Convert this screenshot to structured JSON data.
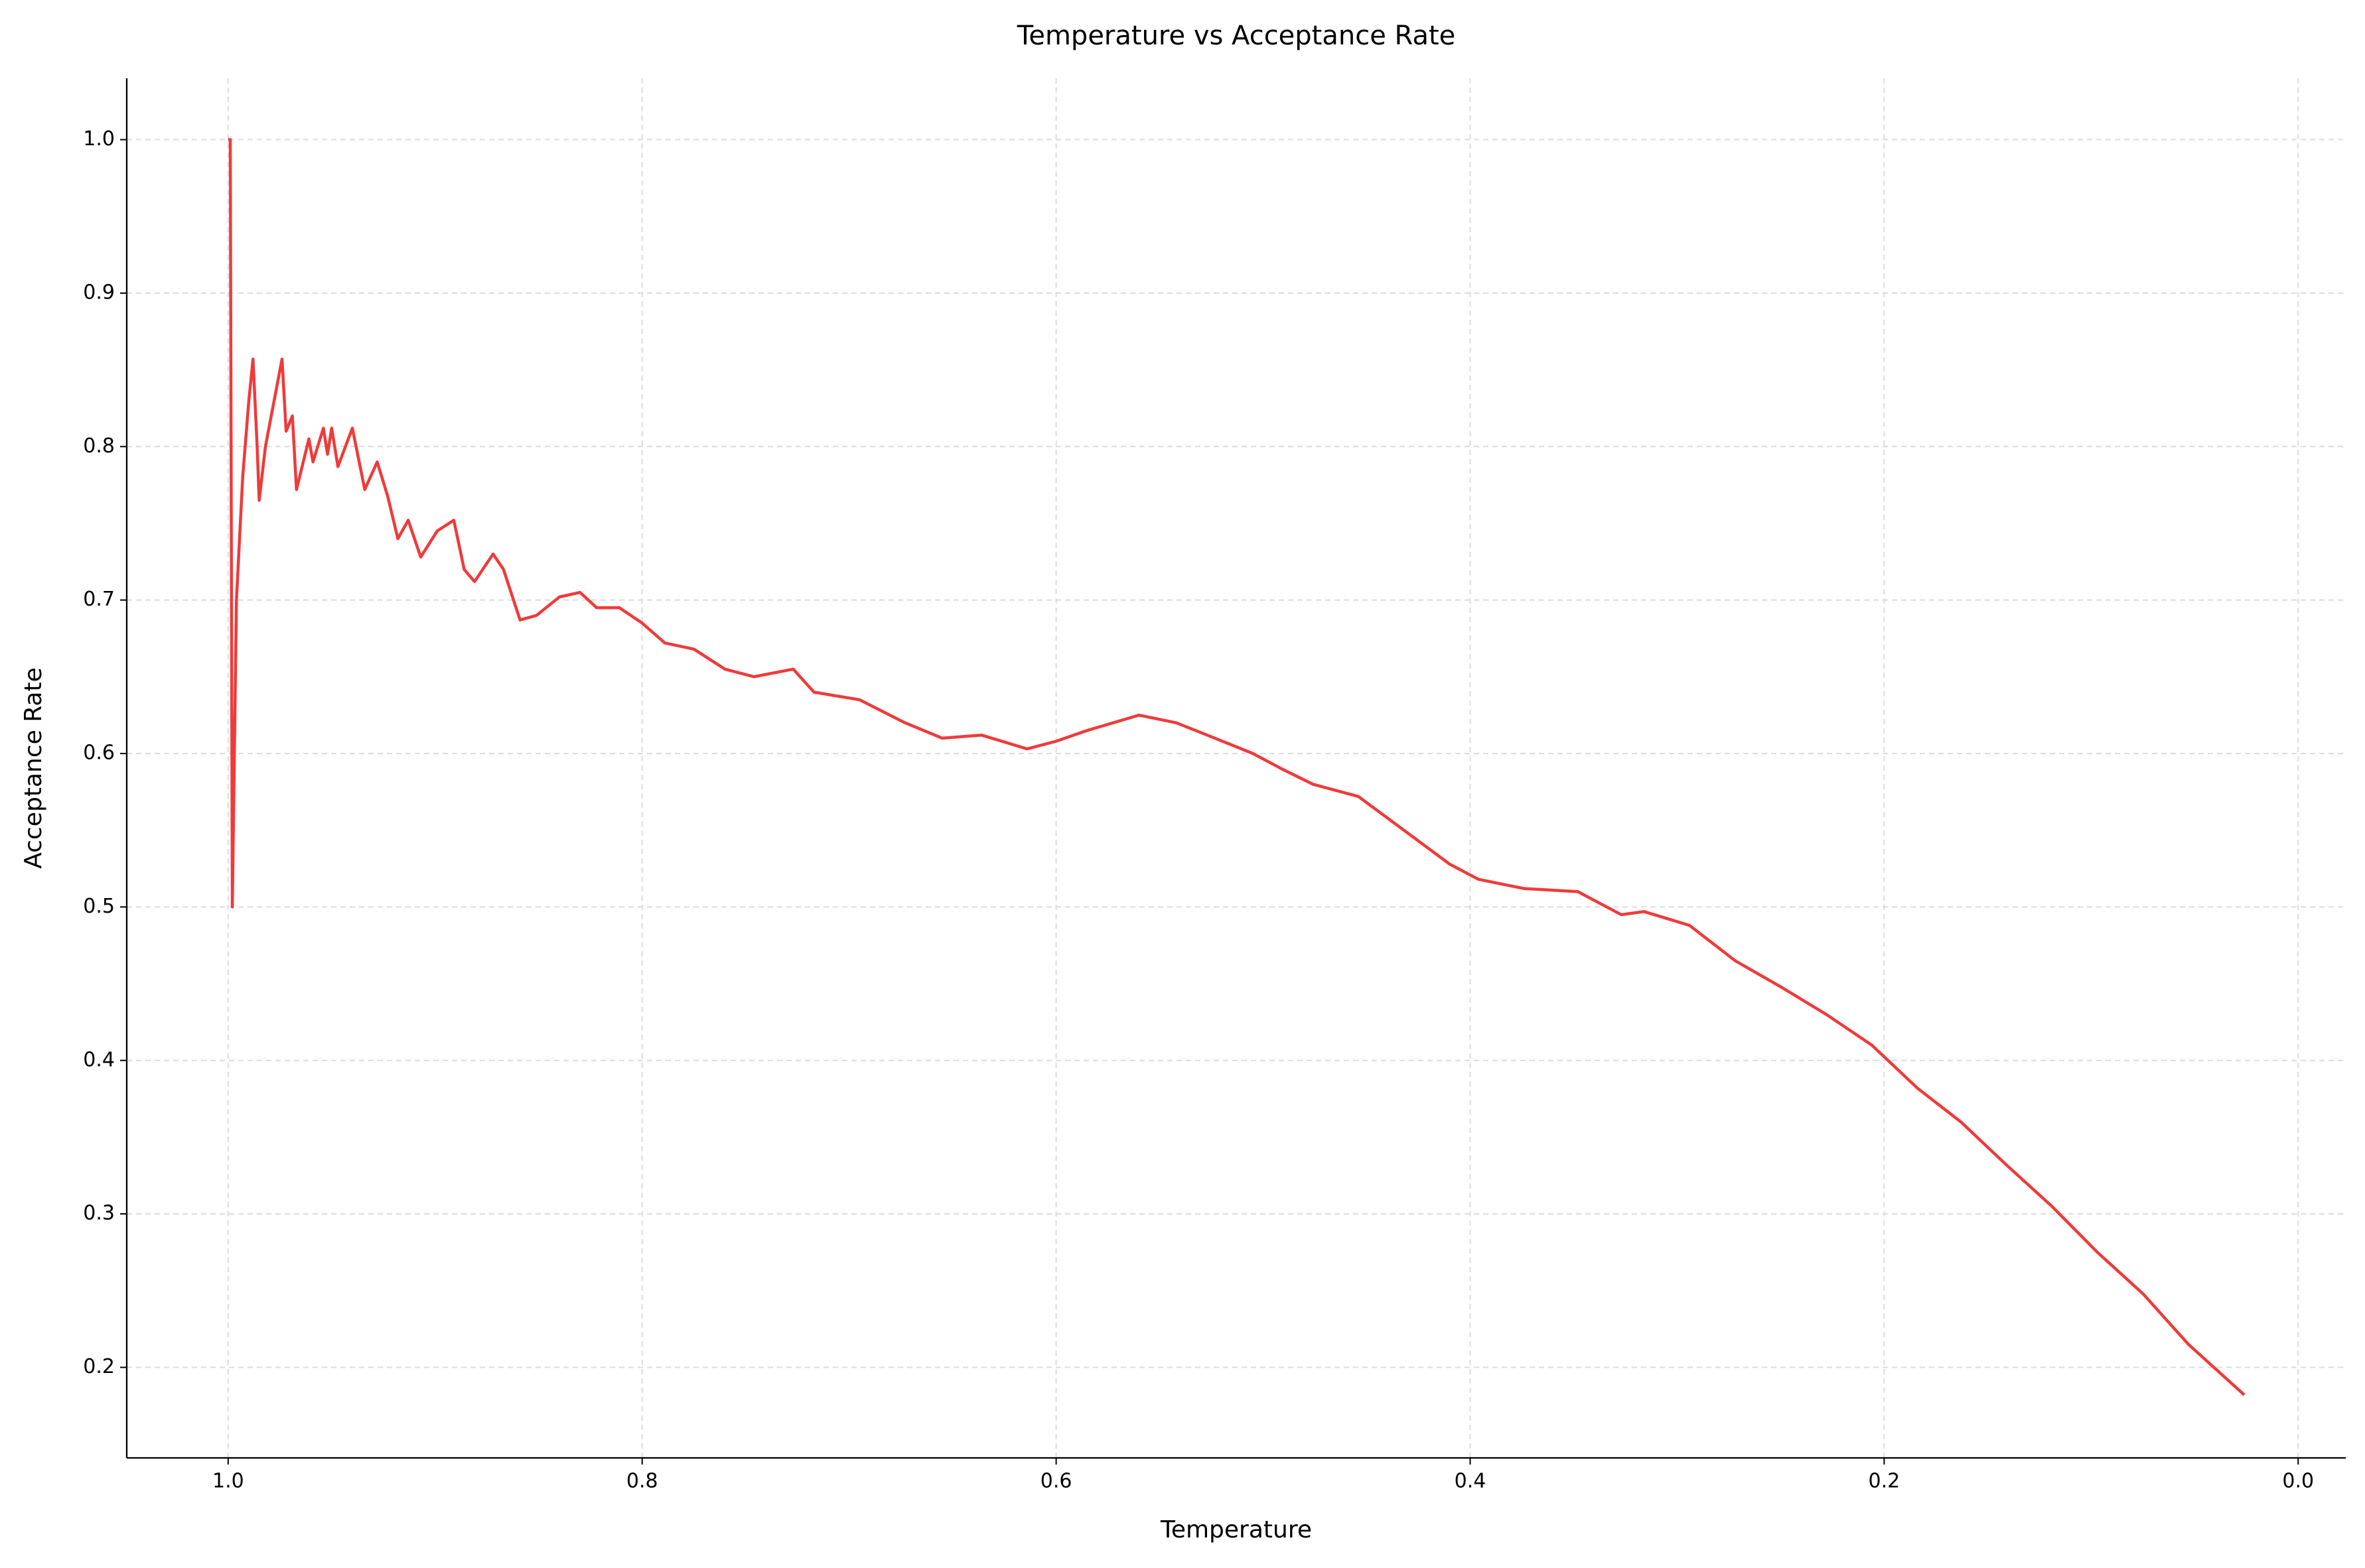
{
  "chart_data": {
    "type": "line",
    "title": "Temperature vs Acceptance Rate",
    "x_label": "Temperature",
    "y_label": "Acceptance Rate",
    "xlim": [
      1.049,
      -0.023
    ],
    "ylim": [
      0.141,
      1.04
    ],
    "xticks": [
      {
        "value": 1,
        "label": "1.0"
      },
      0.8,
      0.6,
      0.4,
      0.2,
      {
        "value": 0,
        "label": "0.0"
      }
    ],
    "yticks": [
      {
        "value": 1,
        "label": "1.0"
      },
      0.9,
      0.8,
      0.7,
      0.6,
      0.5,
      0.4,
      0.3,
      0.2
    ],
    "grid": true,
    "series": [
      {
        "color": "#f03a3a",
        "x": [
          1.0,
          0.999,
          0.998,
          0.996,
          0.993,
          0.99,
          0.988,
          0.986,
          0.985,
          0.982,
          0.974,
          0.972,
          0.969,
          0.967,
          0.961,
          0.959,
          0.954,
          0.952,
          0.95,
          0.947,
          0.94,
          0.934,
          0.928,
          0.923,
          0.918,
          0.913,
          0.907,
          0.899,
          0.891,
          0.886,
          0.881,
          0.872,
          0.867,
          0.859,
          0.851,
          0.84,
          0.83,
          0.822,
          0.811,
          0.8,
          0.789,
          0.775,
          0.76,
          0.746,
          0.727,
          0.717,
          0.695,
          0.673,
          0.655,
          0.636,
          0.614,
          0.6,
          0.585,
          0.56,
          0.542,
          0.527,
          0.505,
          0.491,
          0.476,
          0.454,
          0.432,
          0.41,
          0.396,
          0.374,
          0.348,
          0.327,
          0.316,
          0.294,
          0.272,
          0.25,
          0.228,
          0.206,
          0.184,
          0.163,
          0.141,
          0.119,
          0.097,
          0.075,
          0.053,
          0.026
        ],
        "values": [
          1.0,
          1.0,
          0.5,
          0.7,
          0.78,
          0.83,
          0.857,
          0.8,
          0.765,
          0.8,
          0.857,
          0.81,
          0.82,
          0.772,
          0.805,
          0.79,
          0.812,
          0.795,
          0.812,
          0.787,
          0.812,
          0.772,
          0.79,
          0.768,
          0.74,
          0.752,
          0.728,
          0.745,
          0.752,
          0.72,
          0.712,
          0.73,
          0.72,
          0.687,
          0.69,
          0.702,
          0.705,
          0.695,
          0.695,
          0.685,
          0.672,
          0.668,
          0.655,
          0.65,
          0.655,
          0.64,
          0.635,
          0.62,
          0.61,
          0.612,
          0.603,
          0.608,
          0.615,
          0.625,
          0.62,
          0.612,
          0.6,
          0.59,
          0.58,
          0.572,
          0.55,
          0.528,
          0.518,
          0.512,
          0.51,
          0.495,
          0.497,
          0.488,
          0.465,
          0.448,
          0.43,
          0.41,
          0.382,
          0.36,
          0.332,
          0.305,
          0.275,
          0.248,
          0.215,
          0.182
        ]
      }
    ]
  }
}
